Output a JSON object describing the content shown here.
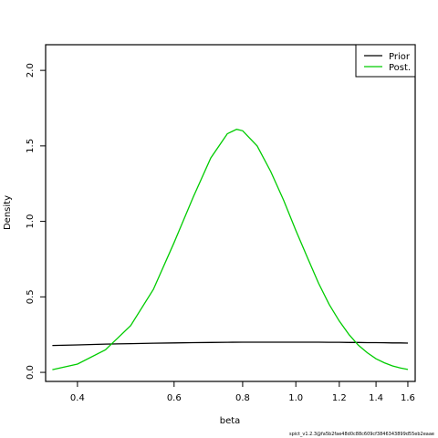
{
  "chart_data": {
    "type": "line",
    "xlabel": "beta",
    "ylabel": "Density",
    "x_scale": "log",
    "xlim": [
      0.35,
      1.65
    ],
    "ylim": [
      -0.06,
      2.17
    ],
    "x_ticks": [
      0.4,
      0.6,
      0.8,
      1.0,
      1.2,
      1.4,
      1.6
    ],
    "x_tick_labels": [
      "0.4",
      "0.6",
      "0.8",
      "1.0",
      "1.2",
      "1.4",
      "1.6"
    ],
    "y_ticks": [
      0.0,
      0.5,
      1.0,
      1.5,
      2.0
    ],
    "y_tick_labels": [
      "0.0",
      "0.5",
      "1.0",
      "1.5",
      "2.0"
    ],
    "grid": false,
    "legend_position": "top-right",
    "series": [
      {
        "name": "Prior",
        "color": "#000000",
        "x": [
          0.36,
          0.4,
          0.45,
          0.5,
          0.55,
          0.6,
          0.65,
          0.7,
          0.75,
          0.8,
          0.85,
          0.9,
          0.95,
          1.0,
          1.05,
          1.1,
          1.15,
          1.2,
          1.25,
          1.3,
          1.35,
          1.4,
          1.45,
          1.5,
          1.55,
          1.6
        ],
        "y": [
          0.178,
          0.182,
          0.187,
          0.19,
          0.193,
          0.195,
          0.197,
          0.198,
          0.199,
          0.2,
          0.2,
          0.2,
          0.2,
          0.2,
          0.2,
          0.2,
          0.199,
          0.199,
          0.198,
          0.198,
          0.197,
          0.197,
          0.196,
          0.195,
          0.195,
          0.194
        ]
      },
      {
        "name": "Post.",
        "color": "#00cc00",
        "x": [
          0.36,
          0.4,
          0.45,
          0.5,
          0.55,
          0.6,
          0.65,
          0.7,
          0.75,
          0.78,
          0.8,
          0.85,
          0.9,
          0.95,
          1.0,
          1.05,
          1.1,
          1.15,
          1.2,
          1.25,
          1.3,
          1.35,
          1.4,
          1.45,
          1.5,
          1.55,
          1.6
        ],
        "y": [
          0.018,
          0.055,
          0.15,
          0.31,
          0.55,
          0.86,
          1.16,
          1.42,
          1.58,
          1.61,
          1.6,
          1.5,
          1.33,
          1.14,
          0.94,
          0.76,
          0.59,
          0.45,
          0.34,
          0.25,
          0.18,
          0.13,
          0.09,
          0.063,
          0.043,
          0.029,
          0.019
        ]
      }
    ]
  },
  "footnote": "spict_v1.2.3@fa5b2fae48d0c88c609cf3846343899d55eb2eaae"
}
